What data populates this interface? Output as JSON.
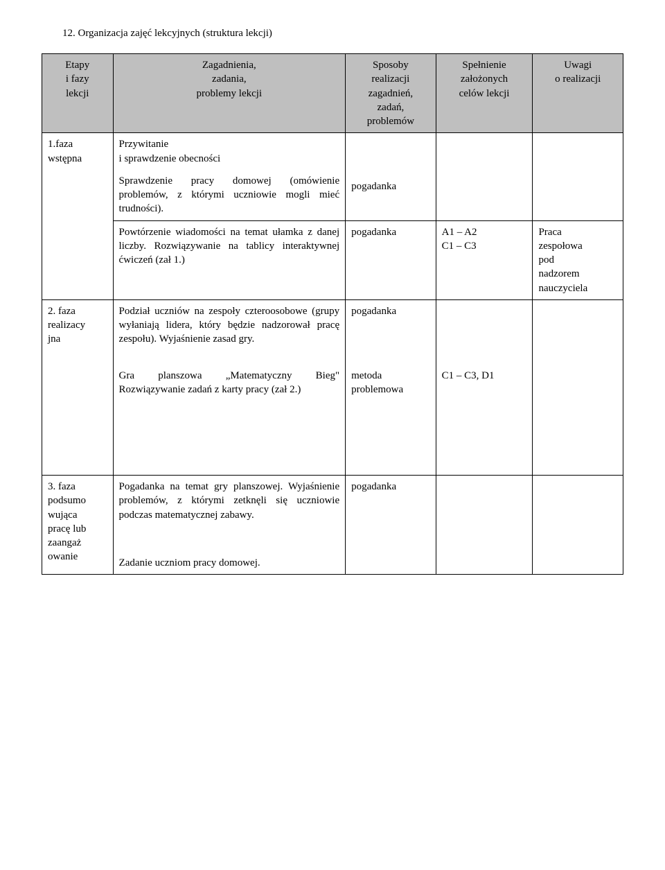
{
  "title": "12. Organizacja zajęć lekcyjnych (struktura lekcji)",
  "headers": {
    "c1": "Etapy\ni fazy\nlekcji",
    "c2": "Zagadnienia,\nzadania,\nproblemy lekcji",
    "c3": "Sposoby\nrealizacji\nzagadnień,\nzadań,\nproblemów",
    "c4": "Spełnienie\nzałożonych\ncelów lekcji",
    "c5": "Uwagi\no realizacji"
  },
  "r1": {
    "etap": "1.faza\nwstępna",
    "zag": "Przywitanie\ni sprawdzenie obecności"
  },
  "r2": {
    "zag": "Sprawdzenie pracy domowej (omówienie problemów, z którymi uczniowie mogli mieć trudności).",
    "spos": "pogadanka"
  },
  "r3": {
    "zag": "Powtórzenie wiadomości na temat ułamka z danej liczby. Rozwiązywanie na tablicy interaktywnej ćwiczeń (zał 1.)",
    "spos": "pogadanka",
    "spel": "A1 – A2\nC1 – C3",
    "uwagi": "Praca\nzespołowa\npod\nnadzorem\nnauczyciela"
  },
  "r4": {
    "etap": "2. faza\nrealizacy\njna",
    "zag": "Podział uczniów na zespoły czteroosobowe (grupy wyłaniają lidera, który będzie nadzorował pracę zespołu). Wyjaśnienie zasad gry.",
    "spos": "pogadanka"
  },
  "r5": {
    "zag": "Gra planszowa „Matematyczny Bieg\" Rozwiązywanie zadań z karty pracy (zał 2.)",
    "spos": "metoda\nproblemowa",
    "spel": "C1 – C3, D1"
  },
  "r6": {
    "etap": "3. faza\npodsumo\nwująca\npracę lub\nzaangaż\nowanie",
    "zag": "Pogadanka na temat gry planszowej. Wyjaśnienie problemów, z którymi zetknęli się uczniowie podczas matematycznej zabawy.",
    "spos": "pogadanka"
  },
  "r7": {
    "zag": "Zadanie uczniom pracy domowej."
  },
  "colors": {
    "header_bg": "#bfbfbf",
    "border": "#000000",
    "bg": "#ffffff",
    "text": "#000000"
  },
  "font": {
    "family": "Times New Roman",
    "size_pt": 11
  }
}
